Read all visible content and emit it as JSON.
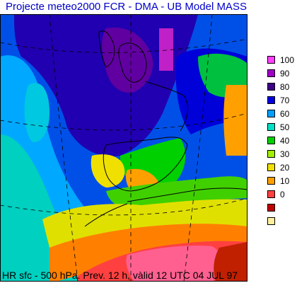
{
  "title": "Projecte meteo2000    FCR - DMA - UB    Model  MASS",
  "caption": "HR sfc - 500 hPa.    Prev. 12 h, vàlid 12 UTC 04 JUL 97",
  "legend": [
    {
      "label": "100",
      "color": "#ff40ff"
    },
    {
      "label": "90",
      "color": "#a000c8"
    },
    {
      "label": "80",
      "color": "#400088"
    },
    {
      "label": "70",
      "color": "#0000e0"
    },
    {
      "label": "60",
      "color": "#00a0ff"
    },
    {
      "label": "50",
      "color": "#00e0c8"
    },
    {
      "label": "40",
      "color": "#00d000"
    },
    {
      "label": "30",
      "color": "#a0f000"
    },
    {
      "label": "20",
      "color": "#f0e000"
    },
    {
      "label": "10",
      "color": "#ffa000"
    },
    {
      "label": "0",
      "color": "#ff4040"
    },
    {
      "label": "",
      "color": "#c00000"
    },
    {
      "label": "",
      "color": "#fff0a0"
    }
  ]
}
